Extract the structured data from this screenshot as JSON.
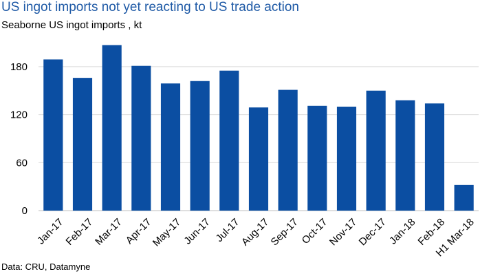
{
  "header": {
    "title": "US ingot imports not yet reacting to US trade action",
    "subtitle": "Seaborne US ingot imports , kt"
  },
  "footer": {
    "source": "Data: CRU, Datamyne"
  },
  "chart_data": {
    "type": "bar",
    "title": "US ingot imports not yet reacting to US trade action",
    "subtitle": "Seaborne US ingot imports , kt",
    "categories": [
      "Jan-17",
      "Feb-17",
      "Mar-17",
      "Apr-17",
      "May-17",
      "Jun-17",
      "Jul-17",
      "Aug-17",
      "Sep-17",
      "Oct-17",
      "Nov-17",
      "Dec-17",
      "Jan-18",
      "Feb-18",
      "H1 Mar-18"
    ],
    "values": [
      189,
      166,
      207,
      181,
      159,
      162,
      175,
      129,
      151,
      131,
      130,
      150,
      138,
      134,
      32
    ],
    "ylim": [
      0,
      210
    ],
    "yticks": [
      0,
      60,
      120,
      180
    ],
    "grid": true,
    "bar_color": "#0B4EA2",
    "grid_color": "#D9D9D9",
    "title_color": "#1F5AA6"
  }
}
